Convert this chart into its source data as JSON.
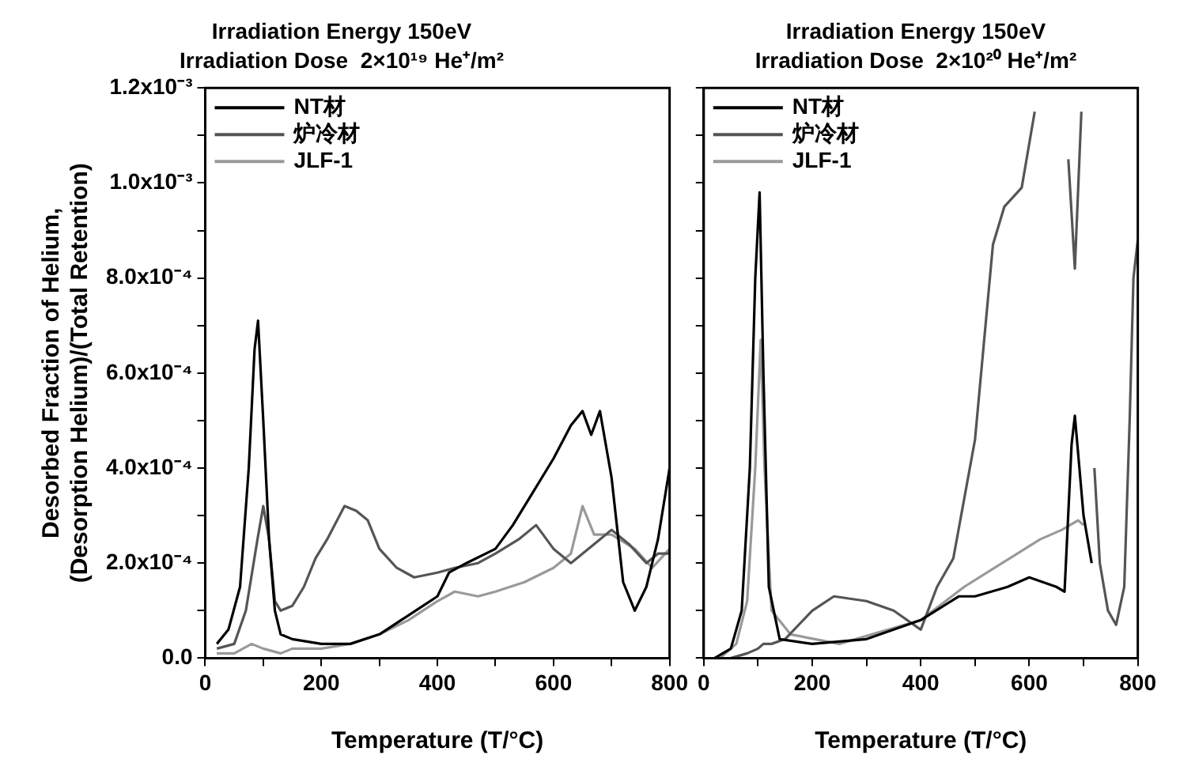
{
  "chart_data": [
    {
      "type": "line",
      "title": "Irradiation Energy 150eV",
      "subtitle": "Irradiation Dose  2×10¹⁹ He⁺/m²",
      "xlabel": "Temperature (T/°C)",
      "ylabel": "Desorbed Fraction of Helium,\n(Desorption Helium)/(Total Retention)",
      "xlim": [
        0,
        800
      ],
      "xticks": [
        0,
        {
          "value": 100,
          "label": null
        },
        200,
        {
          "value": 300,
          "label": null
        },
        400,
        {
          "value": 500,
          "label": null
        },
        600,
        {
          "value": 700,
          "label": null
        },
        800
      ],
      "ylim": [
        0,
        0.0012
      ],
      "yticks": [
        {
          "value": 0,
          "label": "0.0"
        },
        {
          "value": 0.0001,
          "label": null
        },
        {
          "value": 0.0002,
          "label": "2.0x10⁻⁴"
        },
        {
          "value": 0.0003,
          "label": null
        },
        {
          "value": 0.0004,
          "label": "4.0x10⁻⁴"
        },
        {
          "value": 0.0005,
          "label": null
        },
        {
          "value": 0.0006,
          "label": "6.0x10⁻⁴"
        },
        {
          "value": 0.0007,
          "label": null
        },
        {
          "value": 0.0008,
          "label": "8.0x10⁻⁴"
        },
        {
          "value": 0.0009,
          "label": null
        },
        {
          "value": 0.001,
          "label": "1.0x10⁻³"
        },
        {
          "value": 0.0011,
          "label": null
        },
        {
          "value": 0.0012,
          "label": "1.2x10⁻³"
        }
      ],
      "legend": "top left",
      "line_style": "solid",
      "series": [
        {
          "name": "NT材",
          "color": "#000000",
          "x": [
            20,
            40,
            60,
            75,
            85,
            91,
            100,
            110,
            120,
            130,
            150,
            200,
            250,
            300,
            350,
            400,
            420,
            450,
            500,
            530,
            560,
            600,
            630,
            650,
            665,
            680,
            700,
            720,
            740,
            760,
            780,
            800
          ],
          "values": [
            3e-05,
            6e-05,
            0.00015,
            0.0004,
            0.00065,
            0.00071,
            0.0005,
            0.00025,
            0.0001,
            5e-05,
            4e-05,
            3e-05,
            3e-05,
            5e-05,
            9e-05,
            0.00013,
            0.00018,
            0.0002,
            0.00023,
            0.00028,
            0.00034,
            0.00042,
            0.00049,
            0.00052,
            0.00047,
            0.00052,
            0.00038,
            0.00016,
            0.0001,
            0.00015,
            0.00025,
            0.0004
          ]
        },
        {
          "name": "炉冷材",
          "color": "#555555",
          "x": [
            20,
            50,
            70,
            90,
            100,
            110,
            120,
            130,
            150,
            170,
            190,
            210,
            240,
            260,
            280,
            300,
            330,
            360,
            400,
            430,
            470,
            500,
            540,
            570,
            600,
            630,
            650,
            680,
            700,
            730,
            760,
            780,
            800
          ],
          "values": [
            2e-05,
            3e-05,
            0.0001,
            0.00025,
            0.00032,
            0.00025,
            0.00012,
            0.0001,
            0.00011,
            0.00015,
            0.00021,
            0.00025,
            0.00032,
            0.00031,
            0.00029,
            0.00023,
            0.00019,
            0.00017,
            0.00018,
            0.00019,
            0.0002,
            0.00022,
            0.00025,
            0.00028,
            0.00023,
            0.0002,
            0.00022,
            0.00025,
            0.00027,
            0.00024,
            0.0002,
            0.00022,
            0.00022
          ]
        },
        {
          "name": "JLF-1",
          "color": "#999999",
          "x": [
            20,
            50,
            80,
            100,
            130,
            150,
            200,
            250,
            300,
            350,
            400,
            430,
            470,
            500,
            550,
            600,
            630,
            650,
            670,
            700,
            740,
            770,
            800
          ],
          "values": [
            1e-05,
            1e-05,
            3e-05,
            2e-05,
            1e-05,
            2e-05,
            2e-05,
            3e-05,
            5e-05,
            8e-05,
            0.00012,
            0.00014,
            0.00013,
            0.00014,
            0.00016,
            0.00019,
            0.00022,
            0.00032,
            0.00026,
            0.00026,
            0.00023,
            0.00019,
            0.00023
          ]
        }
      ]
    },
    {
      "type": "line",
      "title": "Irradiation Energy 150eV",
      "subtitle": "Irradiation Dose  2×10²⁰ He⁺/m²",
      "xlabel": "Temperature (T/°C)",
      "xlim": [
        0,
        800
      ],
      "xticks": [
        0,
        {
          "value": 100,
          "label": null
        },
        200,
        {
          "value": 300,
          "label": null
        },
        400,
        {
          "value": 500,
          "label": null
        },
        600,
        {
          "value": 700,
          "label": null
        },
        800
      ],
      "ylim": [
        0,
        0.0012
      ],
      "yticks": [
        {
          "value": 0,
          "label": null
        },
        {
          "value": 0.0001,
          "label": null
        },
        {
          "value": 0.0002,
          "label": null
        },
        {
          "value": 0.0003,
          "label": null
        },
        {
          "value": 0.0004,
          "label": null
        },
        {
          "value": 0.0005,
          "label": null
        },
        {
          "value": 0.0006,
          "label": null
        },
        {
          "value": 0.0007,
          "label": null
        },
        {
          "value": 0.0008,
          "label": null
        },
        {
          "value": 0.0009,
          "label": null
        },
        {
          "value": 0.001,
          "label": null
        },
        {
          "value": 0.0011,
          "label": null
        },
        {
          "value": 0.0012,
          "label": null
        }
      ],
      "tick_labels": "x",
      "legend": "top left",
      "line_style": "solid",
      "series": [
        {
          "name": "NT材",
          "color": "#000000",
          "x": [
            20,
            50,
            70,
            85,
            95,
            103,
            110,
            120,
            140,
            200,
            300,
            400,
            470,
            500,
            560,
            600,
            650,
            665,
            678,
            684,
            700,
            715
          ],
          "values": [
            0,
            2e-05,
            0.0001,
            0.0004,
            0.0008,
            0.00098,
            0.0006,
            0.00015,
            4e-05,
            3e-05,
            4e-05,
            8e-05,
            0.00013,
            0.00013,
            0.00015,
            0.00017,
            0.00015,
            0.00014,
            0.00045,
            0.00051,
            0.0003,
            0.0002
          ]
        },
        {
          "name": "炉冷材",
          "color": "#555555",
          "x": [
            50,
            80,
            100,
            110,
            125,
            150,
            200,
            240,
            300,
            350,
            400,
            430,
            460,
            500,
            533,
            554,
            586,
            610,
            660,
            672,
            684,
            696,
            712,
            720,
            730,
            745,
            760,
            775,
            785,
            792,
            800
          ],
          "values": [
            0,
            1e-05,
            2e-05,
            3e-05,
            3e-05,
            4e-05,
            0.0001,
            0.00013,
            0.00012,
            0.0001,
            6e-05,
            0.00015,
            0.00021,
            0.00046,
            0.00087,
            0.00095,
            0.00099,
            0.00115,
            null,
            0.00105,
            0.00082,
            0.00115,
            null,
            0.0004,
            0.0002,
            0.0001,
            7e-05,
            0.00015,
            0.0005,
            0.0008,
            0.00088
          ]
        },
        {
          "name": "JLF-1",
          "color": "#999999",
          "x": [
            30,
            60,
            80,
            95,
            105,
            112,
            125,
            160,
            250,
            400,
            480,
            550,
            620,
            660,
            690,
            700
          ],
          "values": [
            0,
            3e-05,
            0.00012,
            0.0004,
            0.00067,
            0.0004,
            0.0001,
            5e-05,
            3e-05,
            8e-05,
            0.00015,
            0.0002,
            0.00025,
            0.00027,
            0.00029,
            0.00028
          ]
        }
      ]
    }
  ]
}
